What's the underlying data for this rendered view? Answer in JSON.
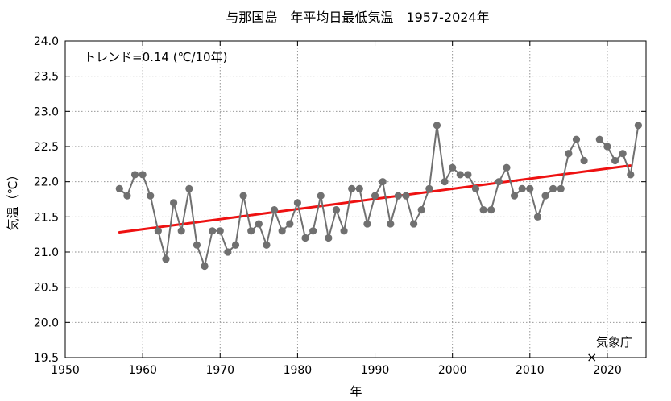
{
  "chart_data": {
    "type": "line",
    "title": "与那国島　年平均日最低気温　1957-2024年",
    "xlabel": "年",
    "ylabel": "気温（℃）",
    "xlim": [
      1950,
      2025
    ],
    "ylim": [
      19.5,
      24.0
    ],
    "xticks": [
      1950,
      1960,
      1970,
      1980,
      1990,
      2000,
      2010,
      2020
    ],
    "yticks": [
      19.5,
      20.0,
      20.5,
      21.0,
      21.5,
      22.0,
      22.5,
      23.0,
      23.5,
      24.0
    ],
    "grid": true,
    "series": [
      {
        "name": "年平均日最低気温",
        "color": "#707070",
        "segments": [
          {
            "x": [
              1957,
              1958,
              1959,
              1960,
              1961,
              1962,
              1963,
              1964,
              1965,
              1966,
              1967,
              1968,
              1969,
              1970,
              1971,
              1972,
              1973,
              1974,
              1975,
              1976,
              1977,
              1978,
              1979,
              1980,
              1981,
              1982,
              1983,
              1984,
              1985,
              1986,
              1987,
              1988,
              1989,
              1990,
              1991,
              1992,
              1993,
              1994,
              1995,
              1996,
              1997,
              1998,
              1999,
              2000,
              2001,
              2002,
              2003,
              2004,
              2005,
              2006,
              2007,
              2008,
              2009,
              2010,
              2011,
              2012,
              2013,
              2014,
              2015,
              2016,
              2017
            ],
            "y": [
              21.9,
              21.8,
              22.1,
              22.1,
              21.8,
              21.3,
              20.9,
              21.7,
              21.3,
              21.9,
              21.1,
              20.8,
              21.3,
              21.3,
              21.0,
              21.1,
              21.8,
              21.3,
              21.4,
              21.1,
              21.6,
              21.3,
              21.4,
              21.7,
              21.2,
              21.3,
              21.8,
              21.2,
              21.6,
              21.3,
              21.9,
              21.9,
              21.4,
              21.8,
              22.0,
              21.4,
              21.8,
              21.8,
              21.4,
              21.6,
              21.9,
              22.8,
              22.0,
              22.2,
              22.1,
              22.1,
              21.9,
              21.6,
              21.6,
              22.0,
              22.2,
              21.8,
              21.9,
              21.9,
              21.5,
              21.8,
              21.9,
              21.9,
              22.4,
              22.6,
              22.3
            ]
          },
          {
            "x": [
              2019,
              2020,
              2021,
              2022,
              2023,
              2024
            ],
            "y": [
              22.6,
              22.5,
              22.3,
              22.4,
              22.1,
              22.8
            ]
          }
        ]
      }
    ],
    "trend": {
      "label": "トレンド=0.14 (℃/10年)",
      "color": "#ee1111",
      "x": [
        1957,
        2023
      ],
      "y": [
        21.28,
        22.23
      ]
    },
    "missing": {
      "x": 2018,
      "y": 19.5,
      "marker": "×"
    },
    "source_label": "気象庁"
  }
}
